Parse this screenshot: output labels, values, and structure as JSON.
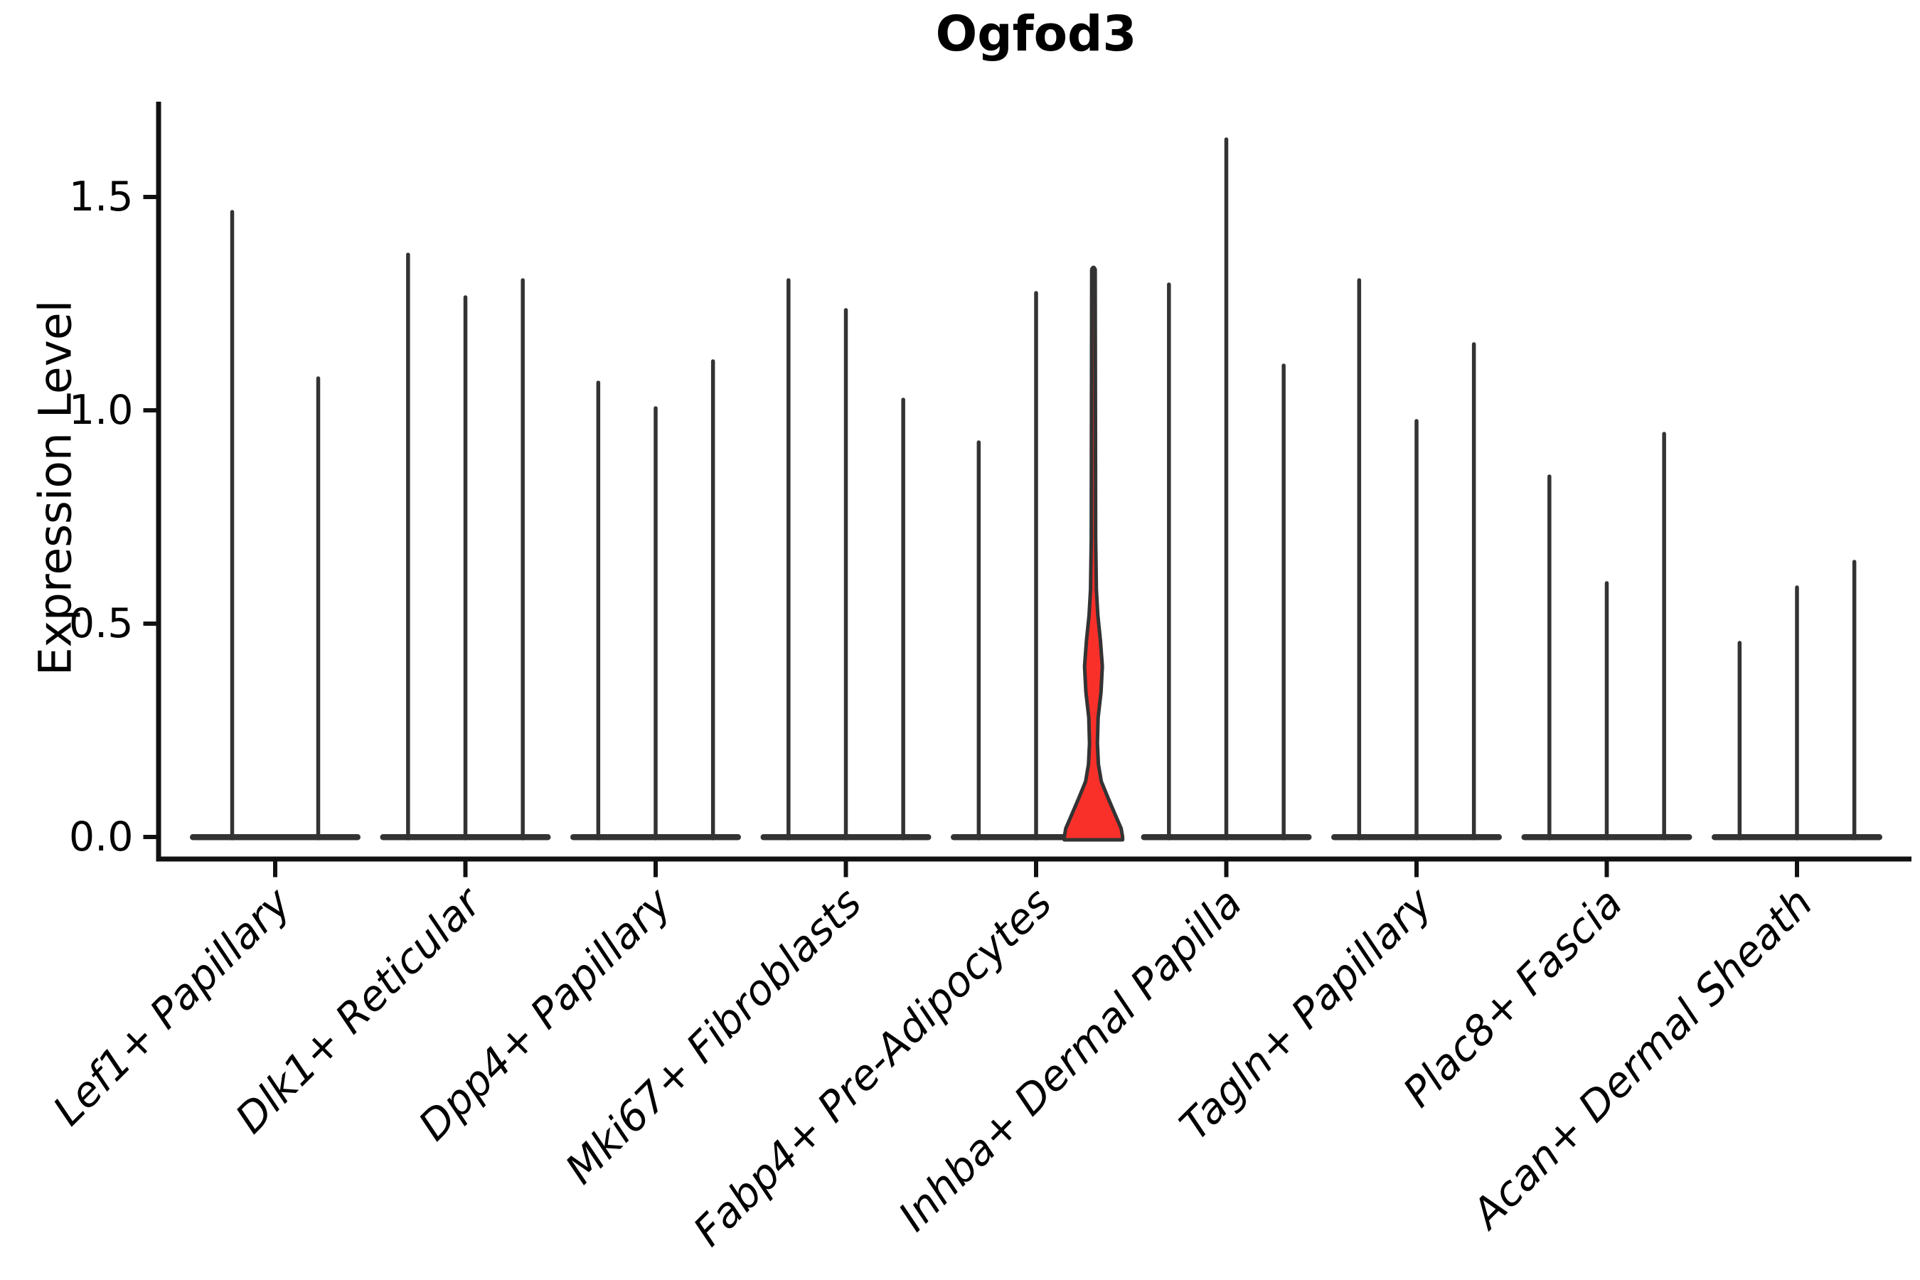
{
  "chart_data": {
    "type": "violin",
    "title": "Ogfod3",
    "ylabel": "Expression Level",
    "xlabel": "",
    "grid": false,
    "legend": null,
    "ylim": [
      -0.05,
      1.72
    ],
    "yticks": [
      "0.0",
      "0.5",
      "1.0",
      "1.5"
    ],
    "ytick_values": [
      0,
      0.5,
      1.0,
      1.5
    ],
    "categories": [
      "Lef1+ Papillary",
      "Dlk1+ Reticular",
      "Dpp4+ Papillary",
      "Mki67+ Fibroblasts",
      "Fabp4+ Pre-Adipocytes",
      "Inhba+ Dermal Papilla",
      "Tagln+ Papillary",
      "Plac8+ Fascia",
      "Acan+ Dermal Sheath"
    ],
    "groups": [
      {
        "category": "Lef1+ Papillary",
        "violin_max_expression": [
          1.47,
          1.08
        ]
      },
      {
        "category": "Dlk1+ Reticular",
        "violin_max_expression": [
          1.37,
          1.27,
          1.31
        ]
      },
      {
        "category": "Dpp4+ Papillary",
        "violin_max_expression": [
          1.07,
          1.01,
          1.12
        ]
      },
      {
        "category": "Mki67+ Fibroblasts",
        "violin_max_expression": [
          1.31,
          1.24,
          1.03
        ]
      },
      {
        "category": "Fabp4+ Pre-Adipocytes",
        "violin_max_expression": [
          0.93,
          1.28,
          1.33
        ],
        "highlight_index": 2
      },
      {
        "category": "Inhba+ Dermal Papilla",
        "violin_max_expression": [
          1.3,
          1.64,
          1.11
        ]
      },
      {
        "category": "Tagln+ Papillary",
        "violin_max_expression": [
          1.31,
          0.98,
          1.16
        ]
      },
      {
        "category": "Plac8+ Fascia",
        "violin_max_expression": [
          0.85,
          0.6,
          0.95
        ]
      },
      {
        "category": "Acan+ Dermal Sheath",
        "violin_max_expression": [
          0.46,
          0.59,
          0.65
        ]
      }
    ],
    "highlight_violin": {
      "category": "Fabp4+ Pre-Adipocytes",
      "position_in_group": 3,
      "max_expression": 1.33,
      "fill_color": "#f9302a",
      "density_profile": [
        [
          0.0,
          1.0
        ],
        [
          0.02,
          0.95
        ],
        [
          0.05,
          0.76
        ],
        [
          0.09,
          0.51
        ],
        [
          0.13,
          0.27
        ],
        [
          0.17,
          0.17
        ],
        [
          0.22,
          0.135
        ],
        [
          0.28,
          0.16
        ],
        [
          0.34,
          0.26
        ],
        [
          0.4,
          0.305
        ],
        [
          0.46,
          0.24
        ],
        [
          0.52,
          0.15
        ],
        [
          0.58,
          0.1
        ],
        [
          0.7,
          0.075
        ],
        [
          1.0,
          0.068
        ],
        [
          1.33,
          0.06
        ]
      ]
    },
    "colors": {
      "violin_line": "#333333",
      "violin_outline": "#333333",
      "highlight_fill": "#f9302a",
      "axis": "#111111",
      "text": "#000000",
      "background": "#ffffff"
    }
  }
}
